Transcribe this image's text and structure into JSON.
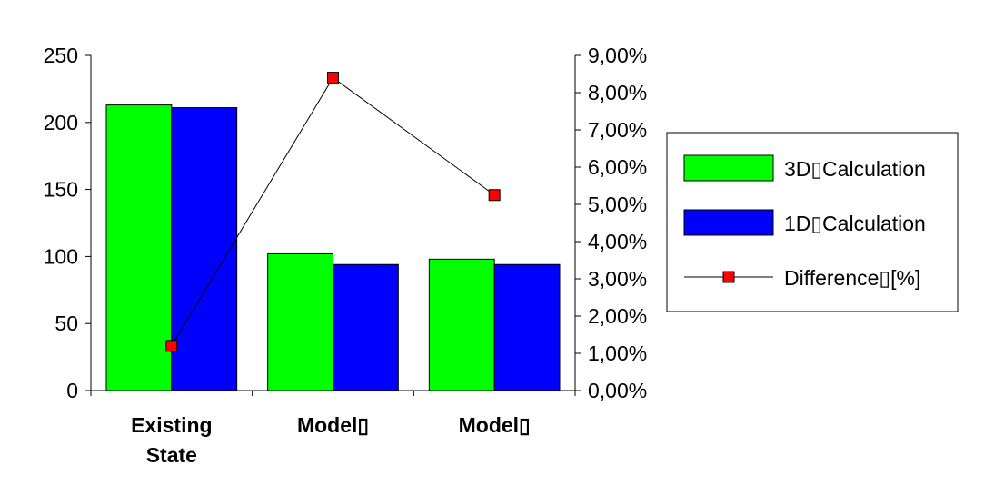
{
  "chart_data": {
    "type": "bar",
    "categories": [
      [
        "Existing",
        "State"
      ],
      [
        "Model▯"
      ],
      [
        "Model▯"
      ]
    ],
    "series": [
      {
        "name": "3D▯Calculation",
        "type": "bar",
        "axis": "left",
        "color": "#00ff00",
        "values": [
          213,
          102,
          98
        ]
      },
      {
        "name": "1D▯Calculation",
        "type": "bar",
        "axis": "left",
        "color": "#0000ff",
        "values": [
          211,
          94,
          94
        ]
      },
      {
        "name": "Difference▯[%]",
        "type": "line",
        "axis": "right",
        "color": "#ff0000",
        "values": [
          1.2,
          8.4,
          5.25
        ]
      }
    ],
    "y_left": {
      "min": 0,
      "max": 250,
      "ticks": [
        "0",
        "50",
        "100",
        "150",
        "200",
        "250"
      ]
    },
    "y_right": {
      "min": 0,
      "max": 9,
      "ticks": [
        "0,00%",
        "1,00%",
        "2,00%",
        "3,00%",
        "4,00%",
        "5,00%",
        "6,00%",
        "7,00%",
        "8,00%",
        "9,00%"
      ]
    },
    "grid": false,
    "legend_position": "right"
  }
}
